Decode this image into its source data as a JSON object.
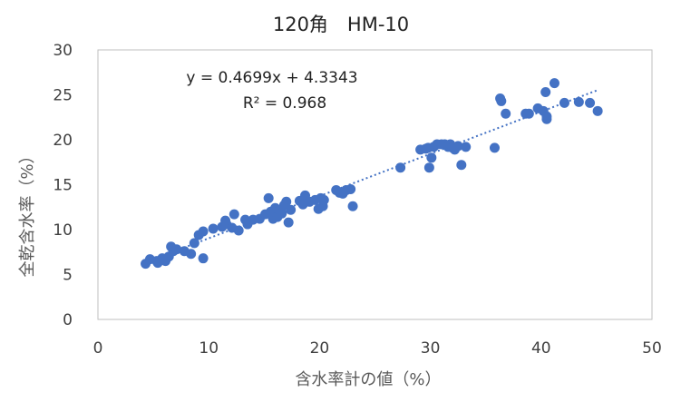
{
  "chart_data": {
    "type": "scatter",
    "title": "120角　HM-10",
    "xlabel": "含水率計の値（%）",
    "ylabel": "全乾含水率（%）",
    "xlim": [
      0,
      50
    ],
    "ylim": [
      0,
      30
    ],
    "x_ticks": [
      "0",
      "10",
      "20",
      "30",
      "40",
      "50"
    ],
    "y_ticks": [
      "0",
      "5",
      "10",
      "15",
      "20",
      "25",
      "30"
    ],
    "grid": false,
    "legend": "none",
    "marker_color": "#4472c4",
    "trendline": {
      "type": "linear",
      "slope": 0.4699,
      "intercept": 4.3343,
      "x_range": [
        4.3,
        45.1
      ],
      "style": "dotted",
      "equation": "y = 0.4699x + 4.3343",
      "r2_label": "R² = 0.968"
    },
    "points": [
      [
        4.3,
        6.2
      ],
      [
        4.7,
        6.7
      ],
      [
        5.3,
        6.5
      ],
      [
        5.4,
        6.3
      ],
      [
        5.8,
        6.8
      ],
      [
        6.1,
        6.5
      ],
      [
        6.4,
        7.0
      ],
      [
        6.6,
        8.1
      ],
      [
        6.8,
        7.6
      ],
      [
        7.1,
        7.8
      ],
      [
        7.8,
        7.6
      ],
      [
        8.4,
        7.3
      ],
      [
        8.7,
        8.5
      ],
      [
        9.1,
        9.4
      ],
      [
        9.5,
        9.8
      ],
      [
        9.5,
        6.8
      ],
      [
        10.4,
        10.1
      ],
      [
        11.2,
        10.3
      ],
      [
        11.5,
        11.0
      ],
      [
        11.6,
        10.6
      ],
      [
        12.1,
        10.2
      ],
      [
        12.3,
        11.7
      ],
      [
        12.7,
        9.9
      ],
      [
        13.3,
        11.1
      ],
      [
        13.5,
        10.6
      ],
      [
        14.0,
        11.1
      ],
      [
        14.6,
        11.2
      ],
      [
        15.1,
        11.7
      ],
      [
        15.4,
        13.5
      ],
      [
        15.6,
        12.0
      ],
      [
        15.8,
        11.2
      ],
      [
        16.0,
        12.4
      ],
      [
        16.2,
        11.4
      ],
      [
        16.4,
        12.2
      ],
      [
        16.6,
        11.8
      ],
      [
        16.8,
        12.7
      ],
      [
        17.0,
        13.1
      ],
      [
        17.2,
        10.8
      ],
      [
        17.4,
        12.2
      ],
      [
        18.2,
        13.2
      ],
      [
        18.5,
        12.8
      ],
      [
        18.7,
        13.8
      ],
      [
        19.1,
        13.1
      ],
      [
        19.6,
        13.3
      ],
      [
        19.9,
        12.3
      ],
      [
        20.1,
        13.5
      ],
      [
        20.3,
        12.6
      ],
      [
        20.4,
        13.3
      ],
      [
        21.5,
        14.4
      ],
      [
        21.8,
        14.1
      ],
      [
        22.1,
        14.0
      ],
      [
        22.4,
        14.4
      ],
      [
        22.8,
        14.5
      ],
      [
        23.0,
        12.6
      ],
      [
        27.3,
        16.9
      ],
      [
        29.1,
        18.9
      ],
      [
        29.6,
        19.0
      ],
      [
        29.8,
        19.1
      ],
      [
        29.9,
        16.9
      ],
      [
        30.1,
        18.0
      ],
      [
        30.3,
        19.2
      ],
      [
        30.6,
        19.5
      ],
      [
        31.0,
        19.5
      ],
      [
        31.3,
        19.5
      ],
      [
        31.6,
        19.2
      ],
      [
        31.8,
        19.5
      ],
      [
        32.0,
        19.1
      ],
      [
        32.2,
        18.9
      ],
      [
        32.5,
        19.3
      ],
      [
        32.8,
        17.2
      ],
      [
        33.2,
        19.2
      ],
      [
        35.8,
        19.1
      ],
      [
        36.3,
        24.6
      ],
      [
        36.4,
        24.3
      ],
      [
        36.8,
        22.9
      ],
      [
        38.6,
        22.9
      ],
      [
        38.9,
        22.9
      ],
      [
        39.7,
        23.5
      ],
      [
        40.2,
        23.2
      ],
      [
        40.4,
        25.3
      ],
      [
        40.5,
        22.3
      ],
      [
        40.5,
        22.6
      ],
      [
        41.2,
        26.3
      ],
      [
        42.1,
        24.1
      ],
      [
        43.4,
        24.2
      ],
      [
        44.4,
        24.1
      ],
      [
        45.1,
        23.2
      ]
    ]
  }
}
